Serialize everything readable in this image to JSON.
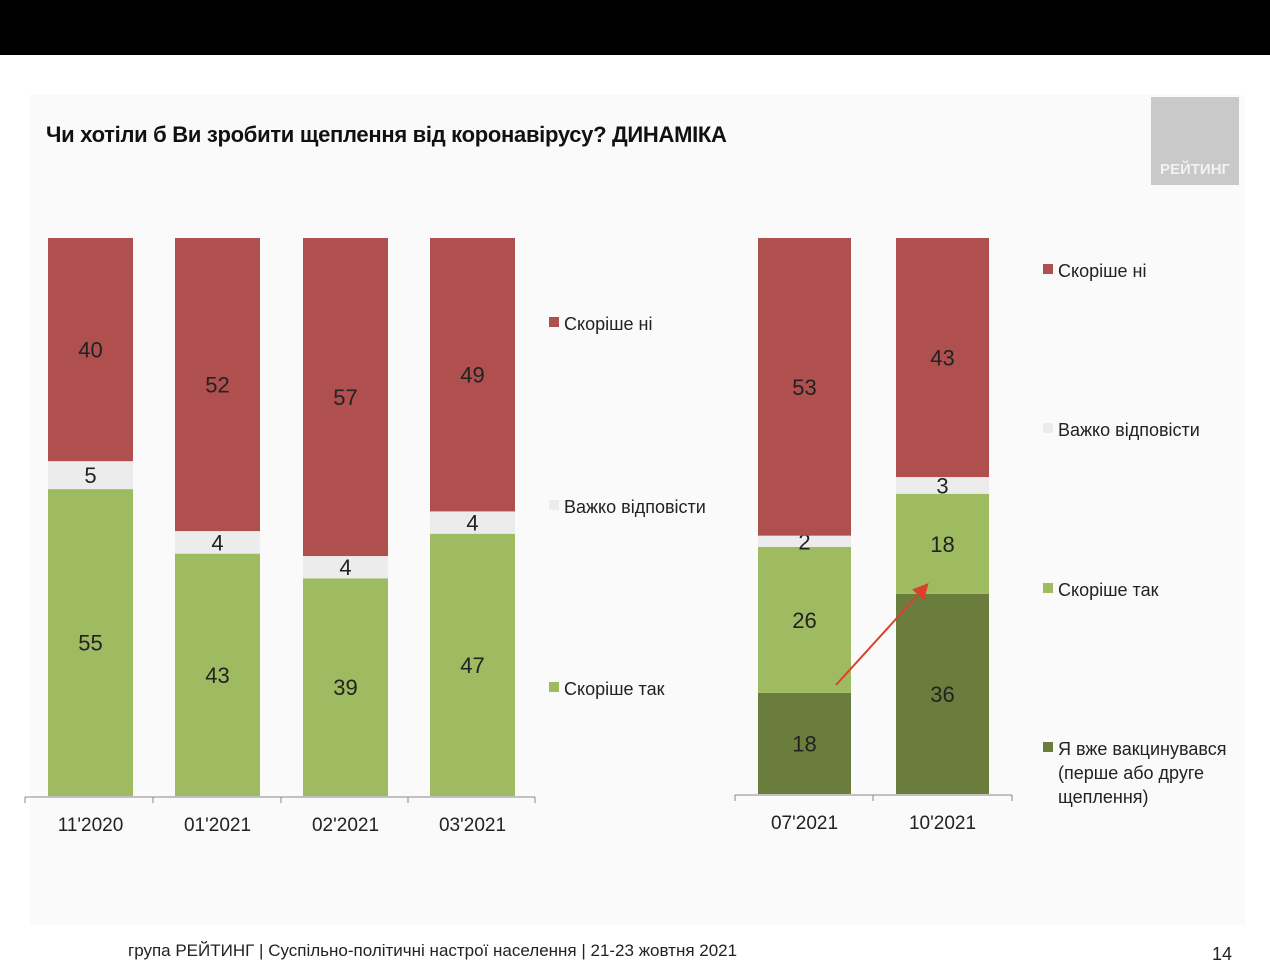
{
  "title": "Чи хотіли б Ви зробити щеплення від коронавірусу? ДИНАМІКА",
  "logo_text": "РЕЙТИНГ",
  "footer": "група РЕЙТИНГ | Суспільно-політичні настрої населення  | 21-23 жовтня 2021",
  "page_number": "14",
  "colors": {
    "Скоріше ні": "#b0504e",
    "Важко відповісти": "#ececec",
    "Скоріше так": "#9fbb62",
    "Я вже вакцинувався": "#6b7d3c",
    "arrow": "#d9412b"
  },
  "chart_data": [
    {
      "type": "stacked-bar",
      "categories": [
        "11'2020",
        "01'2021",
        "02'2021",
        "03'2021"
      ],
      "series": [
        {
          "name": "Скоріше так",
          "values": [
            55,
            43,
            39,
            47
          ]
        },
        {
          "name": "Важко відповісти",
          "values": [
            5,
            4,
            4,
            4
          ]
        },
        {
          "name": "Скоріше ні",
          "values": [
            40,
            52,
            57,
            49
          ]
        }
      ],
      "legend": [
        "Скоріше ні",
        "Важко відповісти",
        "Скоріше так"
      ],
      "legend_position": "right"
    },
    {
      "type": "stacked-bar",
      "categories": [
        "07'2021",
        "10'2021"
      ],
      "series": [
        {
          "name": "Я вже вакцинувався",
          "values": [
            18,
            36
          ]
        },
        {
          "name": "Скоріше так",
          "values": [
            26,
            18
          ]
        },
        {
          "name": "Важко відповісти",
          "values": [
            2,
            3
          ]
        },
        {
          "name": "Скоріше ні",
          "values": [
            53,
            43
          ]
        }
      ],
      "legend": [
        "Скоріше ні",
        "Важко відповісти",
        "Скоріше так",
        "Я вже вакцинувався (перше або друге щеплення)"
      ],
      "legend_position": "right",
      "annotation": "arrow from 07'2021 vaccinated to 10'2021 vaccinated"
    }
  ]
}
